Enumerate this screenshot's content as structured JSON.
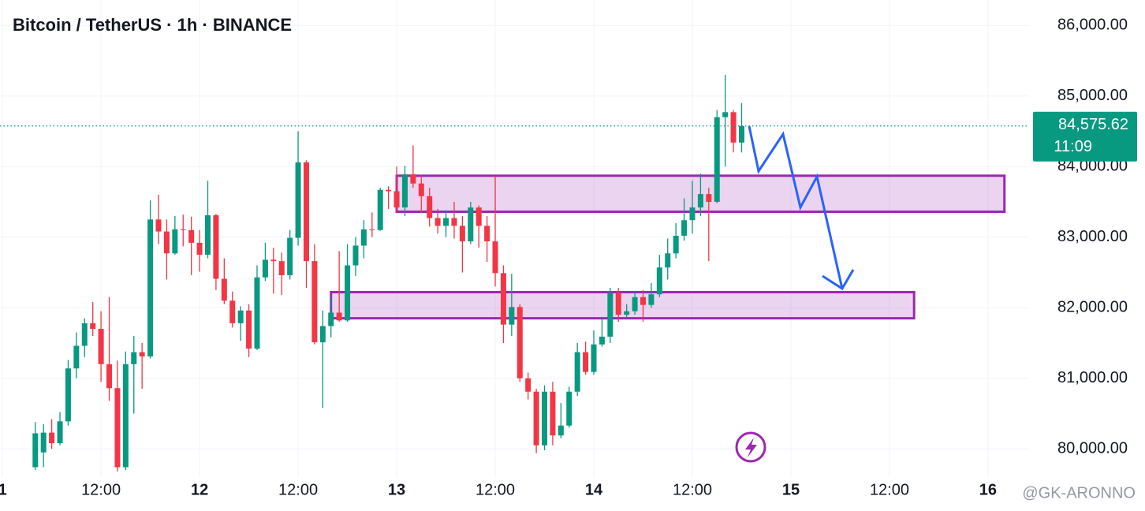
{
  "chart_data": {
    "type": "candlestick",
    "title": "Bitcoin / TetherUS · 1h · BINANCE",
    "watermark": "@GK-ARONNO",
    "up_color": "#089981",
    "down_color": "#f23645",
    "grid": true,
    "xlim": [
      -0.3,
      125
    ],
    "xticks": [
      {
        "value": 0,
        "label": "1"
      },
      {
        "value": 12,
        "label": "12:00"
      },
      {
        "value": 24,
        "label": "12"
      },
      {
        "value": 36,
        "label": "12:00"
      },
      {
        "value": 48,
        "label": "13"
      },
      {
        "value": 60,
        "label": "12:00"
      },
      {
        "value": 72,
        "label": "14"
      },
      {
        "value": 84,
        "label": "12:00"
      },
      {
        "value": 96,
        "label": "15"
      },
      {
        "value": 108,
        "label": "12:00"
      },
      {
        "value": 120,
        "label": "16"
      }
    ],
    "ylim": [
      79600,
      86360
    ],
    "yticks": [
      {
        "value": 80000,
        "label": "80,000.00"
      },
      {
        "value": 81000,
        "label": "81,000.00"
      },
      {
        "value": 82000,
        "label": "82,000.00"
      },
      {
        "value": 83000,
        "label": "83,000.00"
      },
      {
        "value": 84000,
        "label": "84,000.00"
      },
      {
        "value": 85000,
        "label": "85,000.00"
      },
      {
        "value": 86000,
        "label": "86,000.00"
      }
    ],
    "price_tag": {
      "value": 84575.62,
      "label": "84,575.62",
      "countdown": "11:09",
      "color": "#089981"
    },
    "zones": [
      {
        "x": [
          48,
          122
        ],
        "price": [
          83360,
          83870
        ],
        "color": "#9c27b0"
      },
      {
        "x": [
          40,
          111
        ],
        "price": [
          81850,
          82220
        ],
        "color": "#9c27b0"
      }
    ],
    "x": [
      4,
      5,
      6,
      7,
      8,
      9,
      10,
      11,
      12,
      13,
      14,
      15,
      16,
      17,
      18,
      19,
      20,
      21,
      22,
      23,
      24,
      25,
      26,
      27,
      28,
      29,
      30,
      31,
      32,
      33,
      34,
      35,
      36,
      37,
      38,
      39,
      40,
      41,
      42,
      43,
      44,
      45,
      46,
      47,
      48,
      49,
      50,
      51,
      52,
      53,
      54,
      55,
      56,
      57,
      58,
      59,
      60,
      61,
      62,
      63,
      64,
      65,
      66,
      67,
      68,
      69,
      70,
      71,
      72,
      73,
      74,
      75,
      76,
      77,
      78,
      79,
      80,
      81,
      82,
      83,
      84,
      85,
      86,
      87,
      88,
      89,
      90
    ],
    "open": [
      79740,
      79950,
      80230,
      80080,
      80390,
      81140,
      81460,
      81780,
      81700,
      81200,
      80860,
      79740,
      81200,
      81370,
      81310,
      83250,
      83080,
      82770,
      83110,
      83100,
      82920,
      82750,
      83310,
      82410,
      82100,
      81780,
      81960,
      81420,
      82430,
      82680,
      82660,
      82460,
      82990,
      84060,
      82660,
      81510,
      81740,
      81930,
      81820,
      82600,
      82880,
      83110,
      83100,
      83670,
      83650,
      83420,
      83890,
      83760,
      83580,
      83270,
      83160,
      83270,
      83160,
      82940,
      83420,
      83160,
      82940,
      82490,
      81760,
      82010,
      81000,
      80810,
      80050,
      80810,
      80190,
      80330,
      80810,
      81370,
      81090,
      81480,
      81590,
      82210,
      81900,
      81950,
      82150,
      82040,
      82190,
      82570,
      82770,
      83020,
      83240,
      83420,
      83610,
      83500,
      84700,
      84770,
      84340
    ],
    "high": [
      80380,
      80350,
      80420,
      80520,
      81260,
      81650,
      81850,
      82080,
      81950,
      82150,
      81250,
      81380,
      81600,
      81500,
      83520,
      83600,
      83250,
      83300,
      83320,
      83290,
      83100,
      83800,
      83330,
      82700,
      82230,
      82020,
      82050,
      82600,
      82920,
      82850,
      82780,
      83100,
      84500,
      84090,
      82900,
      81960,
      82150,
      82800,
      82900,
      83000,
      83240,
      83350,
      83700,
      83720,
      84000,
      84010,
      84300,
      83880,
      83700,
      83400,
      83380,
      83500,
      83300,
      83500,
      83450,
      83300,
      83870,
      82600,
      82480,
      82050,
      81080,
      80850,
      80900,
      80950,
      80650,
      80880,
      81500,
      81520,
      81680,
      81870,
      82280,
      82280,
      82050,
      82220,
      82250,
      82350,
      82750,
      82980,
      83200,
      83550,
      83800,
      83900,
      83700,
      84800,
      85300,
      84800,
      84900
    ],
    "low": [
      79700,
      79740,
      80000,
      80050,
      80330,
      81000,
      81300,
      81600,
      80950,
      80680,
      79680,
      79700,
      80500,
      80850,
      81280,
      82900,
      82400,
      82750,
      82870,
      82460,
      82510,
      82700,
      82250,
      82050,
      81720,
      81530,
      81300,
      81400,
      82380,
      82200,
      82180,
      82400,
      82880,
      82280,
      81480,
      80580,
      81580,
      81800,
      81800,
      82450,
      82700,
      83000,
      83090,
      83400,
      83350,
      83300,
      83700,
      83350,
      83150,
      83050,
      83000,
      82980,
      82500,
      82900,
      82850,
      82650,
      82300,
      81500,
      81600,
      80950,
      80700,
      79940,
      79980,
      80050,
      80150,
      80300,
      80750,
      81050,
      81050,
      81450,
      81500,
      81800,
      81850,
      81900,
      81800,
      82000,
      82150,
      82400,
      82700,
      82950,
      83050,
      83300,
      82660,
      83480,
      84000,
      84200,
      84200
    ],
    "close": [
      80220,
      80230,
      80080,
      80390,
      81140,
      81460,
      81780,
      81700,
      81200,
      80860,
      79740,
      81200,
      81370,
      81310,
      83250,
      83080,
      82770,
      83110,
      83100,
      82920,
      82750,
      83310,
      82410,
      82100,
      81780,
      81960,
      81420,
      82430,
      82680,
      82660,
      82460,
      82990,
      84060,
      82660,
      81510,
      81740,
      81930,
      81820,
      82600,
      82880,
      83110,
      83100,
      83670,
      83650,
      83420,
      83890,
      83760,
      83580,
      83270,
      83160,
      83270,
      83160,
      82940,
      83420,
      83160,
      82940,
      82490,
      81760,
      82010,
      81000,
      80810,
      80050,
      80810,
      80190,
      80330,
      80810,
      81370,
      81090,
      81480,
      81590,
      82210,
      81900,
      81950,
      82150,
      82040,
      82190,
      82570,
      82770,
      83020,
      83240,
      83420,
      83610,
      83500,
      84700,
      84770,
      84340,
      84575.62
    ]
  }
}
